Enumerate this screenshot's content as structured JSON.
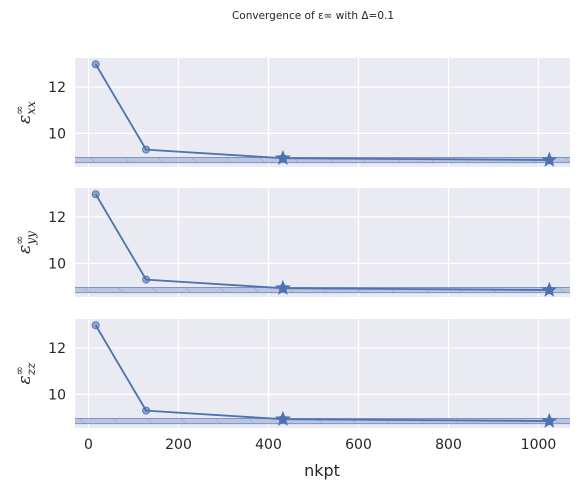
{
  "chart_data": {
    "type": "line",
    "title": "Convergence of ε∞ with Δ=0.1",
    "xlabel": "nkpt",
    "x_ticks": [
      0,
      200,
      400,
      600,
      800,
      1000
    ],
    "xlim": [
      -30,
      1070
    ],
    "shared_x": true,
    "grid": true,
    "panels": [
      {
        "ylabel_main": "ε",
        "ylabel_sup": "∞",
        "ylabel_sub": "xx",
        "ylim": [
          8.55,
          13.25
        ],
        "y_ticks": [
          10,
          12
        ],
        "series": [
          {
            "x": [
              16,
              128,
              432,
              1024
            ],
            "y": [
              12.98,
              9.3,
              8.93,
              8.85
            ]
          }
        ],
        "converged_points": [
          {
            "x": 432,
            "y": 8.93
          },
          {
            "x": 1024,
            "y": 8.85
          }
        ],
        "tolerance_band": {
          "lower": 8.74,
          "upper": 8.96
        }
      },
      {
        "ylabel_main": "ε",
        "ylabel_sup": "∞",
        "ylabel_sub": "yy",
        "ylim": [
          8.55,
          13.25
        ],
        "y_ticks": [
          10,
          12
        ],
        "series": [
          {
            "x": [
              16,
              128,
              432,
              1024
            ],
            "y": [
              12.98,
              9.3,
              8.93,
              8.85
            ]
          }
        ],
        "converged_points": [
          {
            "x": 432,
            "y": 8.93
          },
          {
            "x": 1024,
            "y": 8.85
          }
        ],
        "tolerance_band": {
          "lower": 8.74,
          "upper": 8.96
        }
      },
      {
        "ylabel_main": "ε",
        "ylabel_sup": "∞",
        "ylabel_sub": "zz",
        "ylim": [
          8.55,
          13.25
        ],
        "y_ticks": [
          10,
          12
        ],
        "series": [
          {
            "x": [
              16,
              128,
              432,
              1024
            ],
            "y": [
              12.98,
              9.3,
              8.93,
              8.85
            ]
          }
        ],
        "converged_points": [
          {
            "x": 432,
            "y": 8.93
          },
          {
            "x": 1024,
            "y": 8.85
          }
        ],
        "tolerance_band": {
          "lower": 8.74,
          "upper": 8.96
        }
      }
    ]
  },
  "colors": {
    "line": "#4c72b0",
    "plot_background": "#eaeaf2",
    "grid": "#ffffff",
    "band": "#aab8da",
    "text": "#262626"
  }
}
